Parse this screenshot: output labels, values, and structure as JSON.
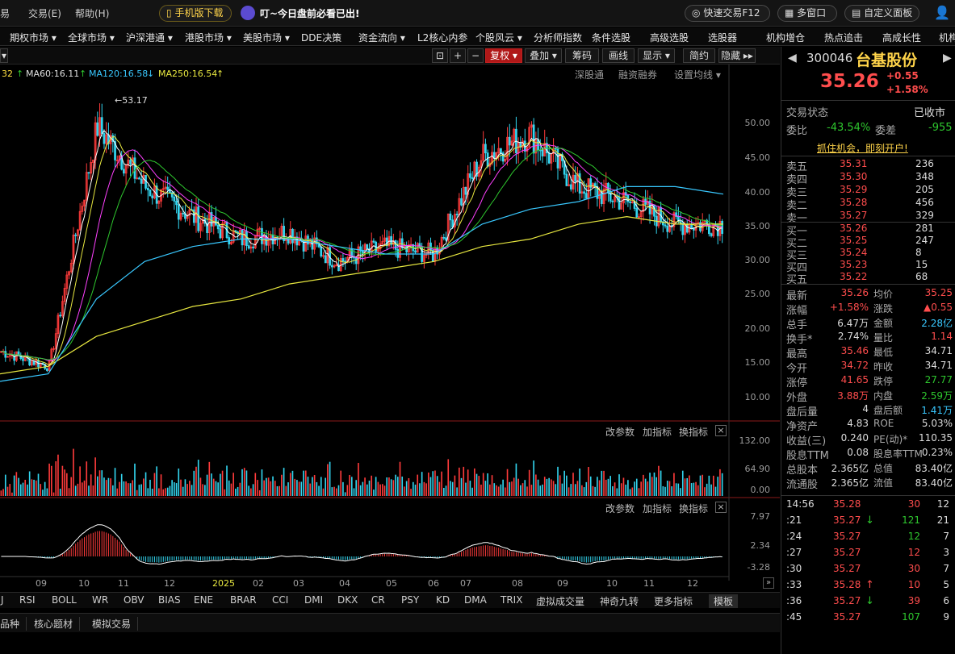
{
  "menu": {
    "trade": "交易(E)",
    "help": "帮助(H)",
    "mobile": "手机版下载",
    "notice": "叮~今日盘前必看已出!",
    "quick_trade": "快速交易F12",
    "multi_window": "多窗口",
    "custom_panel": "自定义面板"
  },
  "nav": [
    "期权市场 ▾",
    "全球市场 ▾",
    "沪深港通 ▾",
    "港股市场 ▾",
    "美股市场 ▾",
    "DDE决策",
    "资金流向 ▾",
    "L2核心内参",
    "个股风云 ▾",
    "分析师指数",
    "条件选股",
    "高级选股",
    "选股器",
    "机构增仓",
    "热点追击",
    "高成长性",
    "机构"
  ],
  "toolbar": {
    "restore": "复权 ▾",
    "overlay": "叠加 ▾",
    "chips": "筹码",
    "draw": "画线",
    "show": "显示 ▾",
    "simple": "简约",
    "hide": "隐藏 ▸▸"
  },
  "ma_labels": {
    "ma_prev": "32",
    "ma60": "MA60:16.11",
    "ma120": "MA120:16.58",
    "ma250": "MA250:16.54"
  },
  "chart_controls": {
    "sgt": "深股通",
    "margin": "融资融券",
    "set_ma": "设置均线 ▾",
    "high_marker": "←53.17"
  },
  "y_axis": [
    "50.00",
    "45.00",
    "40.00",
    "35.00",
    "30.00",
    "25.00",
    "20.00",
    "15.00",
    "10.00"
  ],
  "vol_panel": {
    "params": "改参数",
    "add": "加指标",
    "switch": "换指标",
    "ticks": [
      "132.00",
      "64.90",
      "0.00"
    ]
  },
  "macd_panel": {
    "params": "改参数",
    "add": "加指标",
    "switch": "换指标",
    "ticks": [
      "7.97",
      "2.34",
      "-3.28"
    ]
  },
  "x_axis": [
    "09",
    "10",
    "11",
    "12",
    "2025",
    "02",
    "03",
    "04",
    "05",
    "06",
    "07",
    "08",
    "09",
    "10",
    "11",
    "12"
  ],
  "indicators": [
    "J",
    "RSI",
    "BOLL",
    "WR",
    "OBV",
    "BIAS",
    "ENE",
    "BRAR",
    "CCI",
    "DMI",
    "DKX",
    "CR",
    "PSY",
    "KD",
    "DMA",
    "TRIX",
    "虚拟成交量",
    "神奇九转",
    "更多指标",
    "模板"
  ],
  "bottom_tabs": [
    "品种",
    "核心题材",
    "模拟交易"
  ],
  "quote": {
    "code": "300046",
    "name": "台基股份",
    "price": "35.26",
    "change": "+0.55",
    "pct": "+1.58%",
    "status_label": "交易状态",
    "status": "已收市",
    "wb_label": "委比",
    "wb": "-43.54%",
    "wc_label": "委差",
    "wc": "-955",
    "banner": "抓住机会，即刻开户!",
    "asks": [
      {
        "label": "卖五",
        "price": "35.31",
        "vol": "236"
      },
      {
        "label": "卖四",
        "price": "35.30",
        "vol": "348"
      },
      {
        "label": "卖三",
        "price": "35.29",
        "vol": "205"
      },
      {
        "label": "卖二",
        "price": "35.28",
        "vol": "456"
      },
      {
        "label": "卖一",
        "price": "35.27",
        "vol": "329"
      }
    ],
    "bids": [
      {
        "label": "买一",
        "price": "35.26",
        "vol": "281"
      },
      {
        "label": "买二",
        "price": "35.25",
        "vol": "247"
      },
      {
        "label": "买三",
        "price": "35.24",
        "vol": "8"
      },
      {
        "label": "买四",
        "price": "35.23",
        "vol": "15"
      },
      {
        "label": "买五",
        "price": "35.22",
        "vol": "68"
      }
    ],
    "stats": [
      {
        "l1": "最新",
        "v1": "35.26",
        "c1": "red",
        "l2": "均价",
        "v2": "35.25",
        "c2": "red"
      },
      {
        "l1": "涨幅",
        "v1": "+1.58%",
        "c1": "red",
        "l2": "涨跌",
        "v2": "▲0.55",
        "c2": "red"
      },
      {
        "l1": "总手",
        "v1": "6.47万",
        "c1": "wht",
        "l2": "金额",
        "v2": "2.28亿",
        "c2": "cyn"
      },
      {
        "l1": "换手*",
        "v1": "2.74%",
        "c1": "wht",
        "l2": "量比",
        "v2": "1.14",
        "c2": "red"
      },
      {
        "l1": "最高",
        "v1": "35.46",
        "c1": "red",
        "l2": "最低",
        "v2": "34.71",
        "c2": "wht"
      },
      {
        "l1": "今开",
        "v1": "34.72",
        "c1": "red",
        "l2": "昨收",
        "v2": "34.71",
        "c2": "wht"
      },
      {
        "l1": "涨停",
        "v1": "41.65",
        "c1": "red",
        "l2": "跌停",
        "v2": "27.77",
        "c2": "grn"
      },
      {
        "l1": "外盘",
        "v1": "3.88万",
        "c1": "red",
        "l2": "内盘",
        "v2": "2.59万",
        "c2": "grn"
      },
      {
        "l1": "盘后量",
        "v1": "4",
        "c1": "wht",
        "l2": "盘后额",
        "v2": "1.41万",
        "c2": "cyn"
      },
      {
        "l1": "净资产",
        "v1": "4.83",
        "c1": "wht",
        "l2": "ROE",
        "v2": "5.03%",
        "c2": "wht"
      },
      {
        "l1": "收益(三)",
        "v1": "0.240",
        "c1": "wht",
        "l2": "PE(动)*",
        "v2": "110.35",
        "c2": "wht"
      },
      {
        "l1": "股息TTM",
        "v1": "0.08",
        "c1": "wht",
        "l2": "股息率TTM",
        "v2": "0.23%",
        "c2": "wht"
      },
      {
        "l1": "总股本",
        "v1": "2.365亿",
        "c1": "wht",
        "l2": "总值",
        "v2": "83.40亿",
        "c2": "wht"
      },
      {
        "l1": "流通股",
        "v1": "2.365亿",
        "c1": "wht",
        "l2": "流值",
        "v2": "83.40亿",
        "c2": "wht"
      }
    ],
    "ticks": [
      {
        "t": "14:56",
        "p": "35.28",
        "a": "",
        "v": "30",
        "n": "12",
        "vc": "red"
      },
      {
        "t": ":21",
        "p": "35.27",
        "a": "↓",
        "v": "121",
        "n": "21",
        "vc": "grn"
      },
      {
        "t": ":24",
        "p": "35.27",
        "a": "",
        "v": "12",
        "n": "7",
        "vc": "grn"
      },
      {
        "t": ":27",
        "p": "35.27",
        "a": "",
        "v": "12",
        "n": "3",
        "vc": "red"
      },
      {
        "t": ":30",
        "p": "35.27",
        "a": "",
        "v": "30",
        "n": "7",
        "vc": "red"
      },
      {
        "t": ":33",
        "p": "35.28",
        "a": "↑",
        "v": "10",
        "n": "5",
        "vc": "red"
      },
      {
        "t": ":36",
        "p": "35.27",
        "a": "↓",
        "v": "39",
        "n": "6",
        "vc": "red"
      },
      {
        "t": ":45",
        "p": "35.27",
        "a": "",
        "v": "107",
        "n": "9",
        "vc": "grn"
      }
    ]
  },
  "chart_data": {
    "type": "line",
    "title": "",
    "y_range": [
      10,
      52
    ],
    "x": [
      "09",
      "10",
      "11",
      "12",
      "2025",
      "02",
      "03",
      "04",
      "05",
      "06",
      "07",
      "08",
      "09",
      "10",
      "11",
      "12"
    ],
    "series": [
      {
        "name": "",
        "color": "#ffffff",
        "values": [
          18,
          16,
          48,
          40,
          36,
          33,
          34,
          30,
          32,
          31,
          44,
          47,
          40,
          38,
          35,
          35
        ]
      },
      {
        "name": "",
        "color": "#e8e840",
        "values": [
          15,
          16,
          20,
          22,
          24,
          25,
          27,
          28,
          29,
          30,
          32,
          33,
          35,
          36,
          35,
          35
        ]
      },
      {
        "name": "",
        "color": "#39c8ff",
        "values": [
          14,
          15,
          25,
          30,
          32,
          33,
          33,
          32,
          31,
          31,
          35,
          37,
          38,
          40,
          40,
          39
        ]
      }
    ],
    "annotations": [
      {
        "text": "53.17"
      }
    ]
  }
}
